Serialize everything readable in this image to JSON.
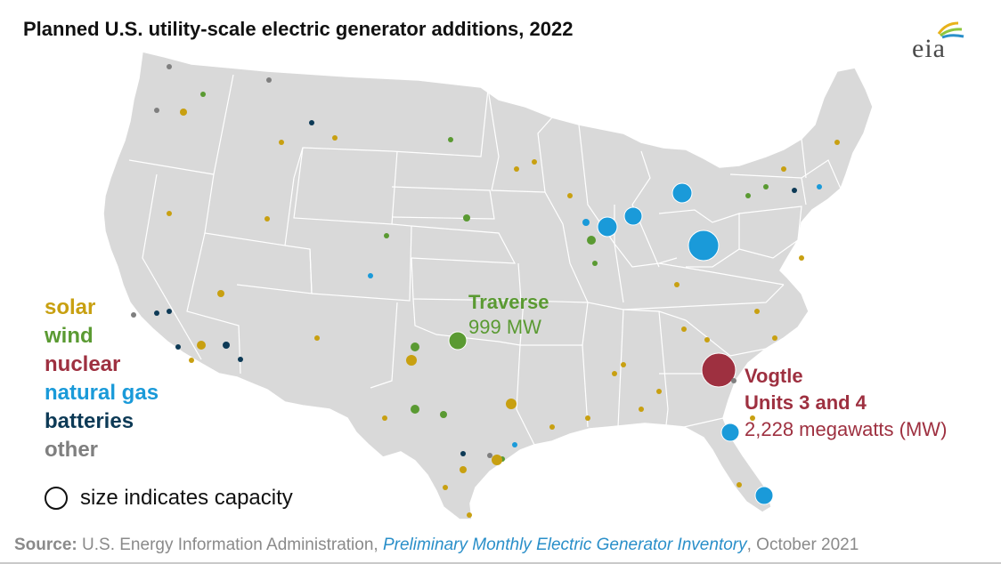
{
  "title": "Planned U.S. utility-scale electric generator additions, 2022",
  "logo_text": "eia",
  "colors": {
    "solar": "#c8a011",
    "wind": "#5a9a32",
    "nuclear": "#9e3040",
    "natural_gas": "#1a9ad9",
    "batteries": "#0d3a56",
    "other": "#7f7f7f",
    "map_fill": "#d9d9d9"
  },
  "legend": [
    {
      "label": "solar",
      "key": "solar"
    },
    {
      "label": "wind",
      "key": "wind"
    },
    {
      "label": "nuclear",
      "key": "nuclear"
    },
    {
      "label": "natural gas",
      "key": "natural_gas"
    },
    {
      "label": "batteries",
      "key": "batteries"
    },
    {
      "label": "other",
      "key": "other"
    }
  ],
  "size_note": "size indicates capacity",
  "annotations": {
    "traverse": {
      "name": "Traverse",
      "value": "999 MW"
    },
    "vogtle": {
      "line1": "Vogtle",
      "line2": "Units 3 and 4",
      "value": "2,228 megawatts (MW)"
    }
  },
  "source": {
    "label": "Source:",
    "org": "U.S. Energy Information Administration,",
    "doc": "Preliminary Monthly Electric Generator Inventory",
    "date": ", October 2021"
  }
}
